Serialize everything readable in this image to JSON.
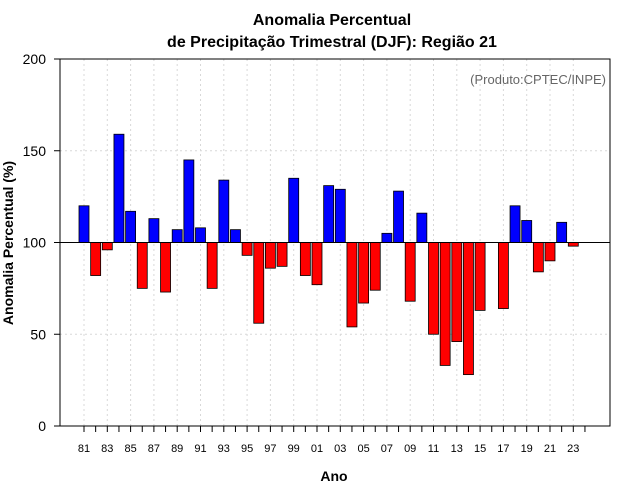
{
  "chart_data": {
    "type": "bar",
    "title_line1": "Anomalia Percentual",
    "title_line2": "de Precipitação Trimestral (DJF): Região 21",
    "credit": "(Produto:CPTEC/INPE)",
    "xlabel": "Ano",
    "ylabel": "Anomalia Percentual (%)",
    "ylim": [
      0,
      200
    ],
    "yticks": [
      0,
      50,
      100,
      150,
      200
    ],
    "baseline": 100,
    "grid": true,
    "colors": {
      "above": "#0000ff",
      "below": "#ff0000",
      "outline": "#000000"
    },
    "categories": [
      "81",
      "82",
      "83",
      "84",
      "85",
      "86",
      "87",
      "88",
      "89",
      "90",
      "91",
      "92",
      "93",
      "94",
      "95",
      "96",
      "97",
      "98",
      "99",
      "00",
      "01",
      "02",
      "03",
      "04",
      "05",
      "06",
      "07",
      "08",
      "09",
      "10",
      "11",
      "12",
      "13",
      "14",
      "15",
      "16",
      "17",
      "18",
      "19",
      "20",
      "21",
      "22",
      "23",
      "24"
    ],
    "x_tick_labels": [
      "81",
      "83",
      "85",
      "87",
      "89",
      "91",
      "93",
      "95",
      "97",
      "99",
      "01",
      "03",
      "05",
      "07",
      "09",
      "11",
      "13",
      "15",
      "17",
      "19",
      "21",
      "23"
    ],
    "values": [
      120,
      82,
      96,
      159,
      117,
      75,
      113,
      73,
      107,
      145,
      108,
      75,
      134,
      107,
      93,
      56,
      86,
      87,
      135,
      82,
      77,
      131,
      129,
      54,
      67,
      74,
      105,
      128,
      68,
      116,
      50,
      33,
      46,
      28,
      63,
      100,
      64,
      120,
      112,
      84,
      90,
      111,
      98,
      100
    ]
  }
}
